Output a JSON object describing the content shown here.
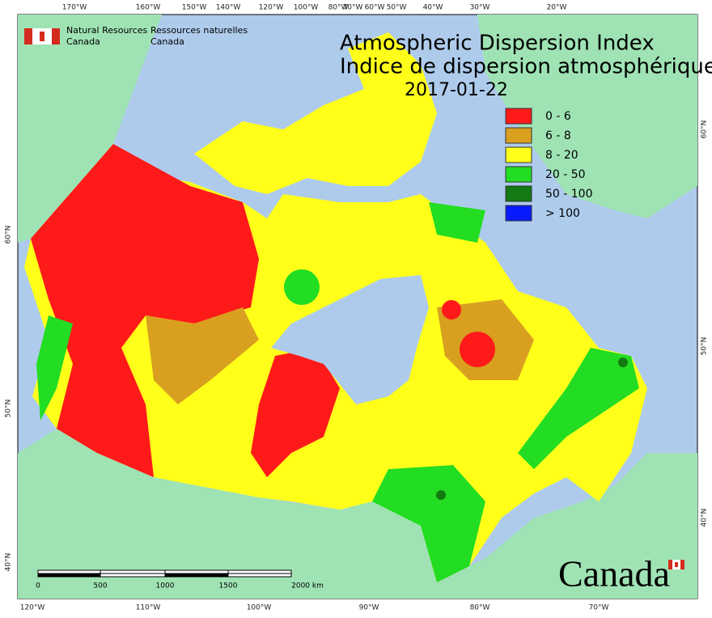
{
  "header": {
    "agency_en": [
      "Natural Resources",
      "Canada"
    ],
    "agency_fr": [
      "Ressources naturelles",
      "Canada"
    ],
    "title": "Atmospheric Dispersion Index",
    "title_fr": "Indice de dispersion atmosphérique",
    "date": "2017-01-22",
    "wordmark": "Canada"
  },
  "legend": {
    "items": [
      {
        "label": "0 - 6",
        "color": "#ff1a1a"
      },
      {
        "label": "6 - 8",
        "color": "#d9a020"
      },
      {
        "label": "8 - 20",
        "color": "#ffff1a"
      },
      {
        "label": "20 - 50",
        "color": "#22dd22"
      },
      {
        "label": "50 - 100",
        "color": "#137a13"
      },
      {
        "label": "> 100",
        "color": "#0a1aff"
      }
    ]
  },
  "graticule": {
    "top": [
      "170°W",
      "160°W",
      "150°W",
      "140°W",
      "120°W",
      "100°W",
      "80°W",
      "70°W",
      "60°W",
      "50°W",
      "40°W",
      "30°W",
      "20°W"
    ],
    "bottom": [
      "120°W",
      "110°W",
      "100°W",
      "90°W",
      "80°W",
      "70°W"
    ],
    "left": [
      "60°N",
      "50°N",
      "40°N"
    ],
    "right": [
      "60°N",
      "50°N",
      "40°N"
    ]
  },
  "scale_bar": {
    "labels": [
      "0",
      "500",
      "1000",
      "1500",
      "2000 km"
    ]
  }
}
